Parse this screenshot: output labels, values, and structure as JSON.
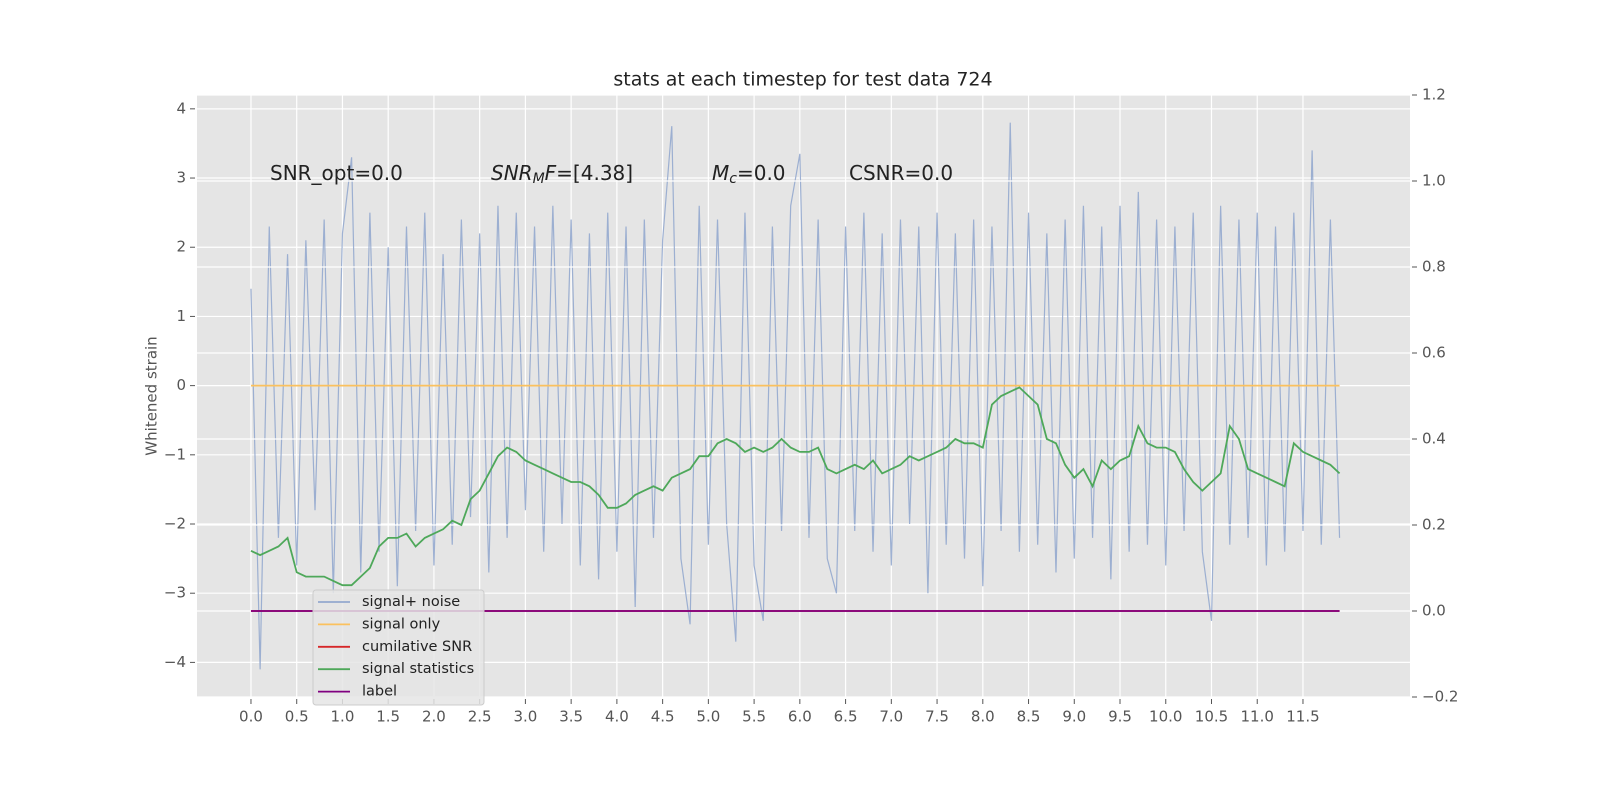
{
  "chart_data": {
    "type": "line",
    "title": "stats at each timestep for test data 724",
    "ylabel": "Whitened strain",
    "annotations": [
      {
        "parts": [
          "SNR_opt=0.0"
        ]
      },
      {
        "parts": [
          "SNR",
          "M",
          "F",
          "=[4.38]"
        ]
      },
      {
        "parts": [
          "M",
          "c",
          "=0.0"
        ]
      },
      {
        "parts": [
          "CSNR=0.0"
        ]
      }
    ],
    "x": [
      0,
      0.1,
      0.2,
      0.3,
      0.4,
      0.5,
      0.6,
      0.7,
      0.8,
      0.9,
      1,
      1.1,
      1.2,
      1.3,
      1.4,
      1.5,
      1.6,
      1.7,
      1.8,
      1.9,
      2,
      2.1,
      2.2,
      2.3,
      2.4,
      2.5,
      2.6,
      2.7,
      2.8,
      2.9,
      3,
      3.1,
      3.2,
      3.3,
      3.4,
      3.5,
      3.6,
      3.7,
      3.8,
      3.9,
      4,
      4.1,
      4.2,
      4.3,
      4.4,
      4.5,
      4.6,
      4.7,
      4.8,
      4.9,
      5,
      5.1,
      5.2,
      5.3,
      5.4,
      5.5,
      5.6,
      5.7,
      5.8,
      5.9,
      6,
      6.1,
      6.2,
      6.3,
      6.4,
      6.5,
      6.6,
      6.7,
      6.8,
      6.9,
      7,
      7.1,
      7.2,
      7.3,
      7.4,
      7.5,
      7.6,
      7.7,
      7.8,
      7.9,
      8,
      8.1,
      8.2,
      8.3,
      8.4,
      8.5,
      8.6,
      8.7,
      8.8,
      8.9,
      9,
      9.1,
      9.2,
      9.3,
      9.4,
      9.5,
      9.6,
      9.7,
      9.8,
      9.9,
      10,
      10.1,
      10.2,
      10.3,
      10.4,
      10.5,
      10.6,
      10.7,
      10.8,
      10.9,
      11,
      11.1,
      11.2,
      11.3,
      11.4,
      11.5,
      11.6,
      11.7,
      11.8,
      11.9
    ],
    "series": [
      {
        "name": "signal+ noise",
        "color": "#93a8ce",
        "axis": "y",
        "values": [
          1.4,
          -4.1,
          2.3,
          -2.2,
          1.9,
          -2.6,
          2.1,
          -1.8,
          2.4,
          -3.0,
          2.2,
          3.3,
          -2.7,
          2.5,
          -2.4,
          2.0,
          -2.9,
          2.3,
          -2.1,
          2.5,
          -2.6,
          1.9,
          -2.3,
          2.4,
          -1.9,
          2.2,
          -2.7,
          2.6,
          -2.2,
          2.5,
          -1.8,
          2.3,
          -2.4,
          2.6,
          -2.0,
          2.4,
          -2.6,
          2.2,
          -2.8,
          2.5,
          -2.4,
          2.3,
          -3.2,
          2.4,
          -2.2,
          2.1,
          3.75,
          -2.5,
          -3.45,
          2.6,
          -2.3,
          2.4,
          -2.0,
          -3.7,
          2.5,
          -2.6,
          -3.4,
          2.3,
          -2.1,
          2.6,
          3.35,
          -2.2,
          2.4,
          -2.5,
          -3.0,
          2.3,
          -2.1,
          2.5,
          -2.4,
          2.2,
          -2.6,
          2.4,
          -2.0,
          2.3,
          -3.0,
          2.5,
          -2.3,
          2.2,
          -2.5,
          2.4,
          -2.9,
          2.3,
          -2.1,
          3.8,
          -2.4,
          2.5,
          -2.3,
          2.2,
          -2.7,
          2.4,
          -2.5,
          2.6,
          -2.2,
          2.3,
          -2.8,
          2.6,
          -2.4,
          2.8,
          -2.3,
          2.4,
          -2.6,
          2.3,
          -2.1,
          2.5,
          -2.4,
          -3.4,
          2.6,
          -2.3,
          2.4,
          -2.2,
          2.5,
          -2.6,
          2.3,
          -2.4,
          2.5,
          -2.1,
          3.4,
          -2.3,
          2.4,
          -2.2
        ]
      },
      {
        "name": "signal only",
        "color": "#fbc15e",
        "axis": "y",
        "values": [
          0,
          0,
          0,
          0,
          0,
          0,
          0,
          0,
          0,
          0,
          0,
          0,
          0,
          0,
          0,
          0,
          0,
          0,
          0,
          0,
          0,
          0,
          0,
          0,
          0,
          0,
          0,
          0,
          0,
          0,
          0,
          0,
          0,
          0,
          0,
          0,
          0,
          0,
          0,
          0,
          0,
          0,
          0,
          0,
          0,
          0,
          0,
          0,
          0,
          0,
          0,
          0,
          0,
          0,
          0,
          0,
          0,
          0,
          0,
          0,
          0,
          0,
          0,
          0,
          0,
          0,
          0,
          0,
          0,
          0,
          0,
          0,
          0,
          0,
          0,
          0,
          0,
          0,
          0,
          0,
          0,
          0,
          0,
          0,
          0,
          0,
          0,
          0,
          0,
          0,
          0,
          0,
          0,
          0,
          0,
          0,
          0,
          0,
          0,
          0,
          0,
          0,
          0,
          0,
          0,
          0,
          0,
          0,
          0,
          0,
          0,
          0,
          0,
          0,
          0,
          0,
          0,
          0,
          0,
          0
        ]
      },
      {
        "name": "cumilative SNR",
        "color": "#d62728",
        "axis": "y2",
        "values": [
          0,
          0,
          0,
          0,
          0,
          0,
          0,
          0,
          0,
          0,
          0,
          0,
          0,
          0,
          0,
          0,
          0,
          0,
          0,
          0,
          0,
          0,
          0,
          0,
          0,
          0,
          0,
          0,
          0,
          0,
          0,
          0,
          0,
          0,
          0,
          0,
          0,
          0,
          0,
          0,
          0,
          0,
          0,
          0,
          0,
          0,
          0,
          0,
          0,
          0,
          0,
          0,
          0,
          0,
          0,
          0,
          0,
          0,
          0,
          0,
          0,
          0,
          0,
          0,
          0,
          0,
          0,
          0,
          0,
          0,
          0,
          0,
          0,
          0,
          0,
          0,
          0,
          0,
          0,
          0,
          0,
          0,
          0,
          0,
          0,
          0,
          0,
          0,
          0,
          0,
          0,
          0,
          0,
          0,
          0,
          0,
          0,
          0,
          0,
          0,
          0,
          0,
          0,
          0,
          0,
          0,
          0,
          0,
          0,
          0,
          0,
          0,
          0,
          0,
          0,
          0,
          0,
          0,
          0,
          0
        ]
      },
      {
        "name": "signal statistics",
        "color": "#4ea85a",
        "axis": "y2",
        "values": [
          0.14,
          0.13,
          0.14,
          0.15,
          0.17,
          0.09,
          0.08,
          0.08,
          0.08,
          0.07,
          0.06,
          0.06,
          0.08,
          0.1,
          0.15,
          0.17,
          0.17,
          0.18,
          0.15,
          0.17,
          0.18,
          0.19,
          0.21,
          0.2,
          0.26,
          0.28,
          0.32,
          0.36,
          0.38,
          0.37,
          0.35,
          0.34,
          0.33,
          0.32,
          0.31,
          0.3,
          0.3,
          0.29,
          0.27,
          0.24,
          0.24,
          0.25,
          0.27,
          0.28,
          0.29,
          0.28,
          0.31,
          0.32,
          0.33,
          0.36,
          0.36,
          0.39,
          0.4,
          0.39,
          0.37,
          0.38,
          0.37,
          0.38,
          0.4,
          0.38,
          0.37,
          0.37,
          0.38,
          0.33,
          0.32,
          0.33,
          0.34,
          0.33,
          0.35,
          0.32,
          0.33,
          0.34,
          0.36,
          0.35,
          0.36,
          0.37,
          0.38,
          0.4,
          0.39,
          0.39,
          0.38,
          0.48,
          0.5,
          0.51,
          0.52,
          0.5,
          0.48,
          0.4,
          0.39,
          0.34,
          0.31,
          0.33,
          0.29,
          0.35,
          0.33,
          0.35,
          0.36,
          0.43,
          0.39,
          0.38,
          0.38,
          0.37,
          0.33,
          0.3,
          0.28,
          0.3,
          0.32,
          0.43,
          0.4,
          0.33,
          0.32,
          0.31,
          0.3,
          0.29,
          0.39,
          0.37,
          0.36,
          0.35,
          0.34,
          0.32
        ]
      },
      {
        "name": "label",
        "color": "#800080",
        "axis": "y2",
        "values": [
          0,
          0,
          0,
          0,
          0,
          0,
          0,
          0,
          0,
          0,
          0,
          0,
          0,
          0,
          0,
          0,
          0,
          0,
          0,
          0,
          0,
          0,
          0,
          0,
          0,
          0,
          0,
          0,
          0,
          0,
          0,
          0,
          0,
          0,
          0,
          0,
          0,
          0,
          0,
          0,
          0,
          0,
          0,
          0,
          0,
          0,
          0,
          0,
          0,
          0,
          0,
          0,
          0,
          0,
          0,
          0,
          0,
          0,
          0,
          0,
          0,
          0,
          0,
          0,
          0,
          0,
          0,
          0,
          0,
          0,
          0,
          0,
          0,
          0,
          0,
          0,
          0,
          0,
          0,
          0,
          0,
          0,
          0,
          0,
          0,
          0,
          0,
          0,
          0,
          0,
          0,
          0,
          0,
          0,
          0,
          0,
          0,
          0,
          0,
          0,
          0,
          0,
          0,
          0,
          0,
          0,
          0,
          0,
          0,
          0,
          0,
          0,
          0,
          0,
          0,
          0,
          0,
          0,
          0,
          0
        ]
      }
    ],
    "xlim": [
      -0.59,
      12.67
    ],
    "xticks": [
      {
        "value": 0,
        "label": "0.0"
      },
      0.5,
      {
        "value": 1,
        "label": "1.0"
      },
      1.5,
      {
        "value": 2,
        "label": "2.0"
      },
      2.5,
      {
        "value": 3,
        "label": "3.0"
      },
      3.5,
      {
        "value": 4,
        "label": "4.0"
      },
      4.5,
      {
        "value": 5,
        "label": "5.0"
      },
      5.5,
      {
        "value": 6,
        "label": "6.0"
      },
      6.5,
      {
        "value": 7,
        "label": "7.0"
      },
      7.5,
      {
        "value": 8,
        "label": "8.0"
      },
      8.5,
      {
        "value": 9,
        "label": "9.0"
      },
      9.5,
      {
        "value": 10,
        "label": "10.0"
      },
      10.5,
      {
        "value": 11,
        "label": "11.0"
      },
      11.5
    ],
    "ylim": [
      -4.5,
      4.2
    ],
    "yticks": [
      {
        "value": -4,
        "label": "−4"
      },
      {
        "value": -3,
        "label": "−3"
      },
      {
        "value": -2,
        "label": "−2"
      },
      {
        "value": -1,
        "label": "−1"
      },
      0,
      1,
      2,
      3,
      4
    ],
    "y2lim": [
      -0.2,
      1.2
    ],
    "y2ticks": [
      {
        "value": -0.2,
        "label": "−0.2"
      },
      {
        "value": 0,
        "label": "0.0"
      },
      0.2,
      0.4,
      0.6,
      0.8,
      {
        "value": 1,
        "label": "1.0"
      },
      1.2
    ],
    "grid": true,
    "legend": "lower left"
  }
}
